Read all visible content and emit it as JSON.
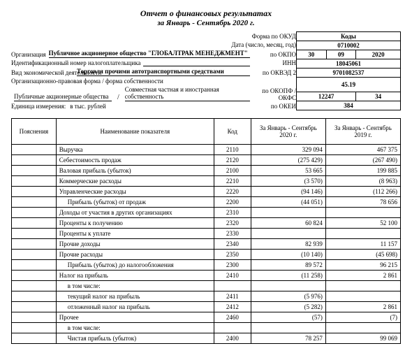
{
  "title": "Отчет о финансовых результатах",
  "subtitle": "за Январь - Сентябрь 2020 г.",
  "header": {
    "form_okud_label": "Форма по ОКУД",
    "date_label": "Дата (число, месяц, год)",
    "org_label": "Организация",
    "org_value": "Публичное акционерное общество \"ГЛОБАЛТРАК МЕНЕДЖМЕНТ\"",
    "okpo_label": "по ОКПО",
    "inn_label": "Идентификационный номер налогоплательщика",
    "inn_rlabel": "ИНН",
    "activity_label": "Вид экономической деятельности",
    "activity_value": "Торговля прочими автотранспортными средствами",
    "okved_label": "по ОКВЭД 2",
    "legal_label": "Организационно-правовая форма / форма собственности",
    "legal_left": "Публичные акционерные общества",
    "legal_right": "Совместная частная и иностранная собственность",
    "okopf_label": "по ОКОПФ / ОКФС",
    "unit_label": "Единица измерения:",
    "unit_value": "в тыс. рублей",
    "okei_label": "по ОКЕИ"
  },
  "codes": {
    "codes_header": "Коды",
    "okud": "0710002",
    "date_d": "30",
    "date_m": "09",
    "date_y": "2020",
    "okpo": "18045061",
    "inn": "9701082537",
    "okved": "45.19",
    "okopf": "12247",
    "okfs": "34",
    "okei": "384"
  },
  "table": {
    "headers": {
      "c1": "Пояснения",
      "c2": "Наименование показателя",
      "c3": "Код",
      "c4": "За Январь - Сентябрь 2020 г.",
      "c5": "За Январь - Сентябрь 2019 г."
    },
    "rows": [
      {
        "n": "Выручка",
        "c": "2110",
        "a": "329 094",
        "b": "467 375",
        "i": 0
      },
      {
        "n": "Себестоимость продаж",
        "c": "2120",
        "a": "(275 429)",
        "b": "(267 490)",
        "i": 0
      },
      {
        "n": "Валовая прибыль (убыток)",
        "c": "2100",
        "a": "53 665",
        "b": "199 885",
        "i": 0
      },
      {
        "n": "Коммерческие расходы",
        "c": "2210",
        "a": "(3 570)",
        "b": "(8 963)",
        "i": 0
      },
      {
        "n": "Управленческие расходы",
        "c": "2220",
        "a": "(94 146)",
        "b": "(112 266)",
        "i": 0
      },
      {
        "n": "Прибыль (убыток) от продаж",
        "c": "2200",
        "a": "(44 051)",
        "b": "78 656",
        "i": 1
      },
      {
        "n": "Доходы от участия в других организациях",
        "c": "2310",
        "a": "",
        "b": "",
        "i": 0
      },
      {
        "n": "Проценты к получению",
        "c": "2320",
        "a": "60 824",
        "b": "52 100",
        "i": 0
      },
      {
        "n": "Проценты к уплате",
        "c": "2330",
        "a": "",
        "b": "",
        "i": 0
      },
      {
        "n": "Прочие доходы",
        "c": "2340",
        "a": "82 939",
        "b": "11 157",
        "i": 0
      },
      {
        "n": "Прочие расходы",
        "c": "2350",
        "a": "(10 140)",
        "b": "(45 698)",
        "i": 0
      },
      {
        "n": "Прибыль (убыток) до налогообложения",
        "c": "2300",
        "a": "89 572",
        "b": "96 215",
        "i": 1
      },
      {
        "n": "Налог на прибыль",
        "c": "2410",
        "a": "(11 258)",
        "b": "2 861",
        "i": 0
      },
      {
        "n": "в том числе:",
        "c": "",
        "a": "",
        "b": "",
        "i": 1
      },
      {
        "n": "текущий налог на прибыль",
        "c": "2411",
        "a": "(5 976)",
        "b": "",
        "i": 1
      },
      {
        "n": "отложенный налог на прибыль",
        "c": "2412",
        "a": "(5 282)",
        "b": "2 861",
        "i": 1
      },
      {
        "n": "Прочее",
        "c": "2460",
        "a": "(57)",
        "b": "(7)",
        "i": 0
      },
      {
        "n": "в том числе:",
        "c": "",
        "a": "",
        "b": "",
        "i": 1
      },
      {
        "n": "Чистая прибыль (убыток)",
        "c": "2400",
        "a": "78 257",
        "b": "99 069",
        "i": 1
      }
    ]
  }
}
